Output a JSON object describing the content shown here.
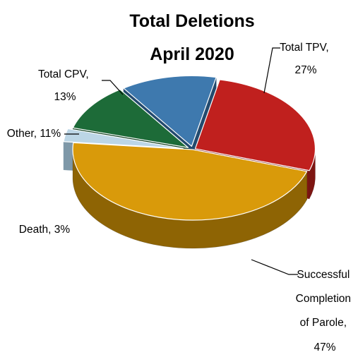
{
  "chart_data": {
    "type": "pie",
    "title_lines": [
      "Total Deletions",
      "April 2020"
    ],
    "slices": [
      {
        "category": "Total TPV",
        "value": 27,
        "percent_label": "27%",
        "color": "#C0201E",
        "side_color": "#7E1512",
        "label_lines": [
          "Total TPV,",
          "27%"
        ]
      },
      {
        "category": "Successful Completion of Parole",
        "value": 47,
        "percent_label": "47%",
        "color": "#D99A0A",
        "side_color": "#8E6404",
        "label_lines": [
          "Successful",
          "Completion",
          "of Parole,",
          "47%"
        ]
      },
      {
        "category": "Death",
        "value": 3,
        "percent_label": "3%",
        "color": "#BCD6E6",
        "side_color": "#7E98A8",
        "label_lines": [
          "Death, 3%"
        ]
      },
      {
        "category": "Other",
        "value": 11,
        "percent_label": "11%",
        "color": "#1D6B38",
        "side_color": "#0F3F1F",
        "label_lines": [
          "Other, 11%"
        ]
      },
      {
        "category": "Total CPV",
        "value": 13,
        "percent_label": "13%",
        "color": "#3E79AE",
        "side_color": "#234A6E",
        "label_lines": [
          "Total CPV,",
          "13%"
        ]
      }
    ],
    "style": "3d-exploded",
    "legend": "none"
  }
}
